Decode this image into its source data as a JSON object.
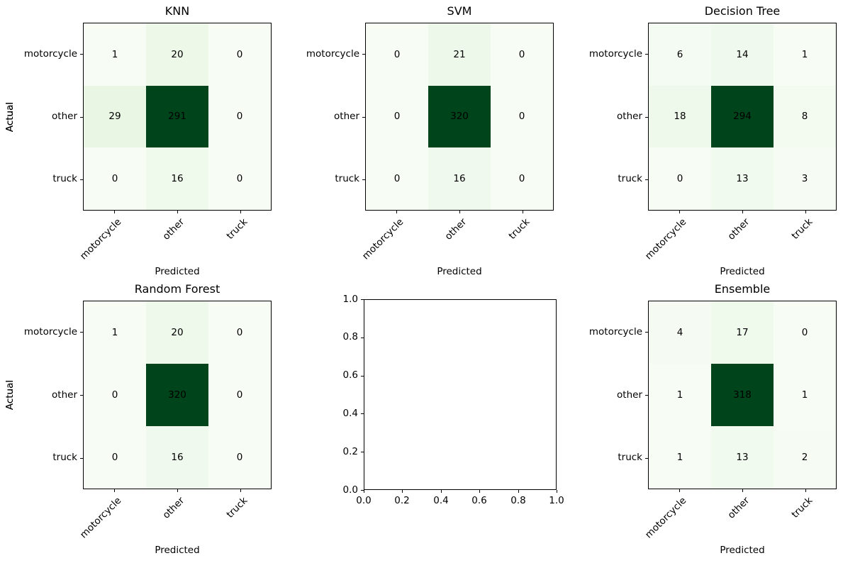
{
  "figure": {
    "background": "#ffffff",
    "text_color": "#000000",
    "spine_color": "#000000"
  },
  "colors": {
    "colormap_name": "Greens",
    "colormap_anchors": [
      "#f7fcf5",
      "#e5f5e0",
      "#c7e9c0",
      "#a1d99b",
      "#74c476",
      "#41ab5d",
      "#238b45",
      "#006d2c",
      "#00441b"
    ],
    "annotation_color": "#000000"
  },
  "chart_data": [
    {
      "type": "heatmap",
      "title": "KNN",
      "xlabel": "Predicted",
      "ylabel": "Actual",
      "x_categories": [
        "motorcycle",
        "other",
        "truck"
      ],
      "y_categories": [
        "motorcycle",
        "other",
        "truck"
      ],
      "matrix": [
        [
          1,
          20,
          0
        ],
        [
          29,
          291,
          0
        ],
        [
          0,
          16,
          0
        ]
      ],
      "vmin": 0,
      "vmax": 291,
      "colormap": "Greens"
    },
    {
      "type": "heatmap",
      "title": "SVM",
      "xlabel": "Predicted",
      "ylabel": "Actual",
      "x_categories": [
        "motorcycle",
        "other",
        "truck"
      ],
      "y_categories": [
        "motorcycle",
        "other",
        "truck"
      ],
      "matrix": [
        [
          0,
          21,
          0
        ],
        [
          0,
          320,
          0
        ],
        [
          0,
          16,
          0
        ]
      ],
      "vmin": 0,
      "vmax": 320,
      "colormap": "Greens"
    },
    {
      "type": "heatmap",
      "title": "Decision Tree",
      "xlabel": "Predicted",
      "ylabel": "Actual",
      "x_categories": [
        "motorcycle",
        "other",
        "truck"
      ],
      "y_categories": [
        "motorcycle",
        "other",
        "truck"
      ],
      "matrix": [
        [
          6,
          14,
          1
        ],
        [
          18,
          294,
          8
        ],
        [
          0,
          13,
          3
        ]
      ],
      "vmin": 0,
      "vmax": 294,
      "colormap": "Greens"
    },
    {
      "type": "heatmap",
      "title": "Random Forest",
      "xlabel": "Predicted",
      "ylabel": "Actual",
      "x_categories": [
        "motorcycle",
        "other",
        "truck"
      ],
      "y_categories": [
        "motorcycle",
        "other",
        "truck"
      ],
      "matrix": [
        [
          1,
          20,
          0
        ],
        [
          0,
          320,
          0
        ],
        [
          0,
          16,
          0
        ]
      ],
      "vmin": 0,
      "vmax": 320,
      "colormap": "Greens"
    },
    {
      "type": "empty_axes",
      "title": "",
      "x_ticks": [
        "0.0",
        "0.2",
        "0.4",
        "0.6",
        "0.8",
        "1.0"
      ],
      "y_ticks": [
        "0.0",
        "0.2",
        "0.4",
        "0.6",
        "0.8",
        "1.0"
      ],
      "xlim": [
        0,
        1
      ],
      "ylim": [
        0,
        1
      ]
    },
    {
      "type": "heatmap",
      "title": "Ensemble",
      "xlabel": "Predicted",
      "ylabel": "Actual",
      "x_categories": [
        "motorcycle",
        "other",
        "truck"
      ],
      "y_categories": [
        "motorcycle",
        "other",
        "truck"
      ],
      "matrix": [
        [
          4,
          17,
          0
        ],
        [
          1,
          318,
          1
        ],
        [
          1,
          13,
          2
        ]
      ],
      "vmin": 0,
      "vmax": 318,
      "colormap": "Greens"
    }
  ]
}
